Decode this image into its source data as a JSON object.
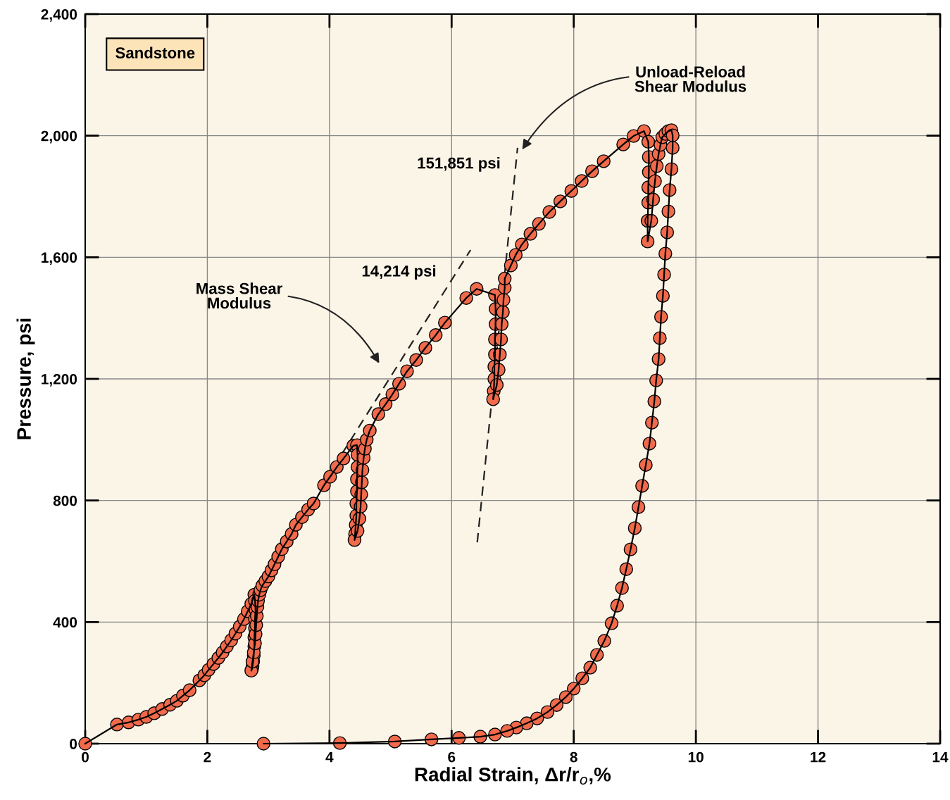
{
  "chart_data": {
    "type": "line",
    "xlabel": "Radial Strain, Δr/r$_{o}$,%",
    "ylabel": "Pressure, psi",
    "xlim": [
      0,
      14
    ],
    "xticks": [
      0,
      2,
      4,
      6,
      8,
      10,
      12,
      14
    ],
    "ylim": [
      0,
      2400
    ],
    "yticks": [
      0,
      {
        "value": 400,
        "label": "400"
      },
      {
        "value": 800,
        "label": "800"
      },
      {
        "value": 1200,
        "label": "1,200"
      },
      {
        "value": 1600,
        "label": "1,600"
      },
      {
        "value": 2000,
        "label": "2,000"
      },
      {
        "value": 2400,
        "label": "2,400"
      }
    ],
    "grid": true,
    "series": [
      {
        "color": "#f06a4b",
        "marker": "circle",
        "line_style": "solid",
        "x": [
          0,
          0.52,
          0.71,
          0.87,
          1.0,
          1.13,
          1.26,
          1.39,
          1.5,
          1.6,
          1.71,
          1.87,
          1.95,
          2.02,
          2.1,
          2.18,
          2.25,
          2.32,
          2.39,
          2.46,
          2.53,
          2.6,
          2.66,
          2.72,
          2.77,
          2.78,
          2.79,
          2.78,
          2.78,
          2.77,
          2.77,
          2.76,
          2.75,
          2.74,
          2.73,
          2.72,
          2.74,
          2.76,
          2.78,
          2.79,
          2.8,
          2.81,
          2.82,
          2.83,
          2.85,
          2.87,
          2.9,
          2.95,
          3.0,
          3.05,
          3.1,
          3.16,
          3.22,
          3.3,
          3.38,
          3.45,
          3.55,
          3.65,
          3.74,
          3.91,
          4.01,
          4.12,
          4.23,
          4.39,
          4.45,
          4.46,
          4.46,
          4.45,
          4.45,
          4.44,
          4.44,
          4.43,
          4.42,
          4.41,
          4.46,
          4.49,
          4.51,
          4.52,
          4.53,
          4.54,
          4.56,
          4.58,
          4.61,
          4.66,
          4.8,
          4.92,
          5.03,
          5.14,
          5.27,
          5.42,
          5.57,
          5.74,
          5.89,
          6.24,
          6.41,
          6.71,
          6.72,
          6.72,
          6.71,
          6.71,
          6.7,
          6.7,
          6.69,
          6.68,
          6.74,
          6.77,
          6.79,
          6.81,
          6.82,
          6.84,
          6.85,
          6.87,
          6.87,
          6.97,
          7.05,
          7.15,
          7.29,
          7.43,
          7.6,
          7.78,
          7.96,
          8.13,
          8.3,
          8.49,
          8.81,
          8.98,
          9.15,
          9.22,
          9.23,
          9.23,
          9.22,
          9.22,
          9.21,
          9.21,
          9.27,
          9.3,
          9.33,
          9.36,
          9.39,
          9.42,
          9.45,
          9.5,
          9.55,
          9.6,
          9.62,
          9.62,
          9.6,
          9.57,
          9.55,
          9.53,
          9.5,
          9.48,
          9.46,
          9.43,
          9.41,
          9.39,
          9.35,
          9.32,
          9.28,
          9.24,
          9.18,
          9.12,
          9.06,
          9.0,
          8.93,
          8.86,
          8.79,
          8.71,
          8.62,
          8.5,
          8.38,
          8.27,
          8.14,
          8.0,
          7.87,
          7.72,
          7.57,
          7.4,
          7.23,
          7.06,
          6.91,
          6.71,
          6.47,
          6.12,
          5.67,
          5.07,
          4.17,
          2.92
        ],
        "values": [
          0,
          63,
          70,
          79,
          88,
          100,
          114,
          128,
          141,
          158,
          176,
          208,
          225,
          243,
          262,
          282,
          300,
          320,
          340,
          362,
          385,
          410,
          435,
          460,
          490,
          470,
          440,
          410,
          380,
          350,
          320,
          290,
          270,
          255,
          245,
          240,
          270,
          300,
          330,
          360,
          390,
          420,
          450,
          470,
          490,
          505,
          520,
          535,
          550,
          570,
          590,
          615,
          640,
          665,
          690,
          720,
          745,
          770,
          790,
          850,
          878,
          910,
          938,
          980,
          982,
          950,
          910,
          870,
          830,
          790,
          750,
          720,
          690,
          670,
          700,
          740,
          780,
          820,
          860,
          900,
          940,
          970,
          1000,
          1030,
          1084,
          1117,
          1149,
          1184,
          1225,
          1262,
          1302,
          1344,
          1385,
          1466,
          1496,
          1476,
          1430,
          1380,
          1330,
          1280,
          1240,
          1200,
          1160,
          1133,
          1180,
          1230,
          1280,
          1330,
          1380,
          1420,
          1460,
          1500,
          1530,
          1573,
          1608,
          1642,
          1677,
          1710,
          1749,
          1784,
          1818,
          1851,
          1883,
          1916,
          1971,
          1999,
          2015,
          1980,
          1930,
          1880,
          1830,
          1780,
          1720,
          1652,
          1720,
          1790,
          1850,
          1900,
          1940,
          1970,
          1995,
          2006,
          2015,
          2018,
          2001,
          1960,
          1890,
          1821,
          1751,
          1682,
          1612,
          1543,
          1473,
          1404,
          1334,
          1265,
          1195,
          1126,
          1056,
          987,
          917,
          848,
          778,
          709,
          639,
          574,
          512,
          454,
          396,
          338,
          292,
          250,
          215,
          181,
          153,
          127,
          104,
          83,
          67,
          53,
          42,
          30,
          23,
          19,
          14,
          7,
          2,
          0
        ]
      },
      {
        "type": "line",
        "color": "#222222",
        "marker": "none",
        "line_style": "dashed",
        "x": [
          4.2,
          6.31
        ],
        "values": [
          952,
          1624
        ]
      },
      {
        "type": "line",
        "color": "#222222",
        "marker": "none",
        "line_style": "dashed",
        "x": [
          6.42,
          7.08
        ],
        "values": [
          662,
          1960
        ]
      }
    ],
    "annotations": [
      "Sandstone",
      "Mass Shear\nModulus",
      "Unload-Reload\nShear Modulus",
      "14,214 psi",
      "151,851 psi"
    ]
  }
}
